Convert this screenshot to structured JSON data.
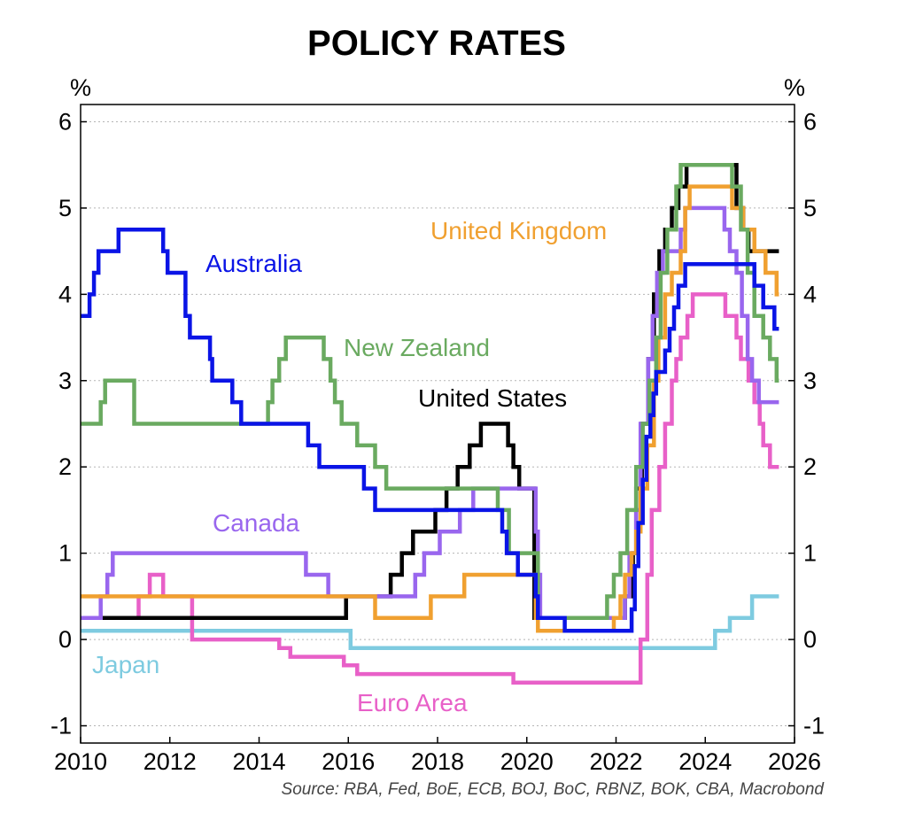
{
  "chart_data": {
    "type": "line",
    "title": "POLICY RATES",
    "ylabel_left": "%",
    "ylabel_right": "%",
    "source": "Source: RBA, Fed, BoE, ECB, BOJ, BoC, RBNZ, BOK, CBA, Macrobond",
    "xlim": [
      2010,
      2026
    ],
    "ylim": [
      -1.2,
      6.2
    ],
    "x_ticks": [
      "2010",
      "2012",
      "2014",
      "2016",
      "2018",
      "2020",
      "2022",
      "2024",
      "2026"
    ],
    "y_ticks": [
      "-1",
      "0",
      "1",
      "2",
      "3",
      "4",
      "5",
      "6"
    ],
    "grid": true,
    "step": true,
    "series": [
      {
        "name": "Japan",
        "color": "#7ecbe0",
        "points": [
          [
            2010,
            0.1
          ],
          [
            2016.05,
            -0.1
          ],
          [
            2024.22,
            0.1
          ],
          [
            2024.55,
            0.25
          ],
          [
            2025.05,
            0.5
          ],
          [
            2025.65,
            0.5
          ]
        ]
      },
      {
        "name": "Euro Area",
        "color": "#e860c8",
        "points": [
          [
            2010,
            0.25
          ],
          [
            2011.3,
            0.5
          ],
          [
            2011.55,
            0.75
          ],
          [
            2011.85,
            0.5
          ],
          [
            2012.5,
            0
          ],
          [
            2013.35,
            0
          ],
          [
            2014.45,
            -0.1
          ],
          [
            2014.7,
            -0.2
          ],
          [
            2015.9,
            -0.3
          ],
          [
            2016.2,
            -0.4
          ],
          [
            2019.7,
            -0.5
          ],
          [
            2022.55,
            0
          ],
          [
            2022.7,
            0.75
          ],
          [
            2022.8,
            1.5
          ],
          [
            2022.97,
            2
          ],
          [
            2023.1,
            2.5
          ],
          [
            2023.25,
            3
          ],
          [
            2023.35,
            3.25
          ],
          [
            2023.45,
            3.5
          ],
          [
            2023.6,
            3.75
          ],
          [
            2023.72,
            4
          ],
          [
            2024.45,
            3.75
          ],
          [
            2024.7,
            3.5
          ],
          [
            2024.8,
            3.25
          ],
          [
            2024.97,
            3
          ],
          [
            2025.1,
            2.75
          ],
          [
            2025.22,
            2.5
          ],
          [
            2025.3,
            2.25
          ],
          [
            2025.45,
            2
          ],
          [
            2025.65,
            2
          ]
        ]
      },
      {
        "name": "United States",
        "color": "#000000",
        "points": [
          [
            2010,
            0.25
          ],
          [
            2015.95,
            0.5
          ],
          [
            2016.95,
            0.75
          ],
          [
            2017.2,
            1
          ],
          [
            2017.45,
            1.25
          ],
          [
            2017.95,
            1.5
          ],
          [
            2018.2,
            1.75
          ],
          [
            2018.45,
            2
          ],
          [
            2018.72,
            2.25
          ],
          [
            2018.97,
            2.5
          ],
          [
            2019.58,
            2.25
          ],
          [
            2019.7,
            2
          ],
          [
            2019.83,
            1.75
          ],
          [
            2020.17,
            0.25
          ],
          [
            2022.2,
            0.5
          ],
          [
            2022.38,
            1
          ],
          [
            2022.45,
            1.75
          ],
          [
            2022.58,
            2.5
          ],
          [
            2022.72,
            3.25
          ],
          [
            2022.85,
            4
          ],
          [
            2022.97,
            4.5
          ],
          [
            2023.1,
            4.75
          ],
          [
            2023.25,
            5
          ],
          [
            2023.4,
            5.25
          ],
          [
            2023.58,
            5.5
          ],
          [
            2024.7,
            5
          ],
          [
            2024.85,
            4.75
          ],
          [
            2024.97,
            4.5
          ],
          [
            2025.65,
            4.5
          ]
        ]
      },
      {
        "name": "Canada",
        "color": "#9966ee",
        "points": [
          [
            2010,
            0.25
          ],
          [
            2010.45,
            0.5
          ],
          [
            2010.6,
            0.75
          ],
          [
            2010.72,
            1
          ],
          [
            2015.05,
            0.75
          ],
          [
            2015.55,
            0.5
          ],
          [
            2017.5,
            0.75
          ],
          [
            2017.7,
            1
          ],
          [
            2018.05,
            1.25
          ],
          [
            2018.5,
            1.5
          ],
          [
            2018.8,
            1.75
          ],
          [
            2020.2,
            1.25
          ],
          [
            2020.25,
            0.75
          ],
          [
            2020.3,
            0.25
          ],
          [
            2022.2,
            0.5
          ],
          [
            2022.3,
            1
          ],
          [
            2022.45,
            1.5
          ],
          [
            2022.55,
            2.5
          ],
          [
            2022.72,
            3.25
          ],
          [
            2022.82,
            3.75
          ],
          [
            2022.92,
            4.25
          ],
          [
            2023.05,
            4.5
          ],
          [
            2023.45,
            4.75
          ],
          [
            2023.55,
            5
          ],
          [
            2024.43,
            4.75
          ],
          [
            2024.55,
            4.5
          ],
          [
            2024.7,
            4.25
          ],
          [
            2024.82,
            3.75
          ],
          [
            2024.95,
            3.25
          ],
          [
            2025.05,
            3
          ],
          [
            2025.2,
            2.75
          ],
          [
            2025.65,
            2.75
          ]
        ]
      },
      {
        "name": "United Kingdom",
        "color": "#f0a030",
        "points": [
          [
            2010,
            0.5
          ],
          [
            2016.6,
            0.25
          ],
          [
            2017.85,
            0.5
          ],
          [
            2018.6,
            0.75
          ],
          [
            2020.2,
            0.25
          ],
          [
            2020.25,
            0.1
          ],
          [
            2021.95,
            0.25
          ],
          [
            2022.1,
            0.5
          ],
          [
            2022.2,
            0.75
          ],
          [
            2022.35,
            1
          ],
          [
            2022.45,
            1.25
          ],
          [
            2022.55,
            1.75
          ],
          [
            2022.7,
            2.25
          ],
          [
            2022.85,
            3
          ],
          [
            2022.95,
            3.5
          ],
          [
            2023.1,
            4
          ],
          [
            2023.25,
            4.25
          ],
          [
            2023.45,
            4.5
          ],
          [
            2023.55,
            5
          ],
          [
            2023.65,
            5.25
          ],
          [
            2024.6,
            5
          ],
          [
            2024.85,
            4.75
          ],
          [
            2025.1,
            4.5
          ],
          [
            2025.35,
            4.25
          ],
          [
            2025.6,
            4
          ],
          [
            2025.65,
            4
          ]
        ]
      },
      {
        "name": "New Zealand",
        "color": "#6aaa60",
        "points": [
          [
            2010,
            2.5
          ],
          [
            2010.45,
            2.75
          ],
          [
            2010.55,
            3
          ],
          [
            2011.2,
            2.5
          ],
          [
            2014.2,
            2.75
          ],
          [
            2014.3,
            3
          ],
          [
            2014.45,
            3.25
          ],
          [
            2014.6,
            3.5
          ],
          [
            2015.45,
            3.25
          ],
          [
            2015.6,
            3
          ],
          [
            2015.7,
            2.75
          ],
          [
            2015.85,
            2.5
          ],
          [
            2016.2,
            2.25
          ],
          [
            2016.6,
            2
          ],
          [
            2016.85,
            1.75
          ],
          [
            2019.35,
            1.5
          ],
          [
            2019.6,
            1
          ],
          [
            2020.25,
            0.25
          ],
          [
            2021.8,
            0.5
          ],
          [
            2021.95,
            0.75
          ],
          [
            2022.1,
            1
          ],
          [
            2022.25,
            1.5
          ],
          [
            2022.45,
            2
          ],
          [
            2022.6,
            2.5
          ],
          [
            2022.75,
            3
          ],
          [
            2022.9,
            3.5
          ],
          [
            2023.0,
            4.25
          ],
          [
            2023.15,
            4.75
          ],
          [
            2023.35,
            5.25
          ],
          [
            2023.45,
            5.5
          ],
          [
            2024.6,
            5.25
          ],
          [
            2024.8,
            4.75
          ],
          [
            2024.95,
            4.25
          ],
          [
            2025.1,
            3.75
          ],
          [
            2025.3,
            3.5
          ],
          [
            2025.45,
            3.25
          ],
          [
            2025.6,
            3
          ],
          [
            2025.65,
            3
          ]
        ]
      },
      {
        "name": "Australia",
        "color": "#0a14e6",
        "points": [
          [
            2010,
            3.75
          ],
          [
            2010.2,
            4
          ],
          [
            2010.3,
            4.25
          ],
          [
            2010.4,
            4.5
          ],
          [
            2010.85,
            4.75
          ],
          [
            2011.85,
            4.5
          ],
          [
            2011.95,
            4.25
          ],
          [
            2012.35,
            3.75
          ],
          [
            2012.45,
            3.5
          ],
          [
            2012.9,
            3.25
          ],
          [
            2012.95,
            3
          ],
          [
            2013.4,
            2.75
          ],
          [
            2013.6,
            2.5
          ],
          [
            2015.1,
            2.25
          ],
          [
            2015.35,
            2
          ],
          [
            2016.35,
            1.75
          ],
          [
            2016.6,
            1.5
          ],
          [
            2019.45,
            1.25
          ],
          [
            2019.55,
            1
          ],
          [
            2019.8,
            0.75
          ],
          [
            2020.2,
            0.5
          ],
          [
            2020.25,
            0.25
          ],
          [
            2020.85,
            0.1
          ],
          [
            2022.35,
            0.35
          ],
          [
            2022.42,
            0.85
          ],
          [
            2022.5,
            1.35
          ],
          [
            2022.6,
            1.85
          ],
          [
            2022.68,
            2.35
          ],
          [
            2022.77,
            2.6
          ],
          [
            2022.84,
            2.85
          ],
          [
            2022.9,
            3.1
          ],
          [
            2023.1,
            3.35
          ],
          [
            2023.2,
            3.6
          ],
          [
            2023.3,
            3.85
          ],
          [
            2023.4,
            4.1
          ],
          [
            2023.55,
            4.35
          ],
          [
            2024.85,
            4.35
          ],
          [
            2025.1,
            4.1
          ],
          [
            2025.3,
            3.85
          ],
          [
            2025.55,
            3.6
          ],
          [
            2025.65,
            3.6
          ]
        ]
      }
    ],
    "labels": [
      {
        "text": "Australia",
        "series": "Australia"
      },
      {
        "text": "New Zealand",
        "series": "New Zealand"
      },
      {
        "text": "United States",
        "series": "United States"
      },
      {
        "text": "United Kingdom",
        "series": "United Kingdom"
      },
      {
        "text": "Canada",
        "series": "Canada"
      },
      {
        "text": "Japan",
        "series": "Japan"
      },
      {
        "text": "Euro Area",
        "series": "Euro Area"
      }
    ]
  }
}
